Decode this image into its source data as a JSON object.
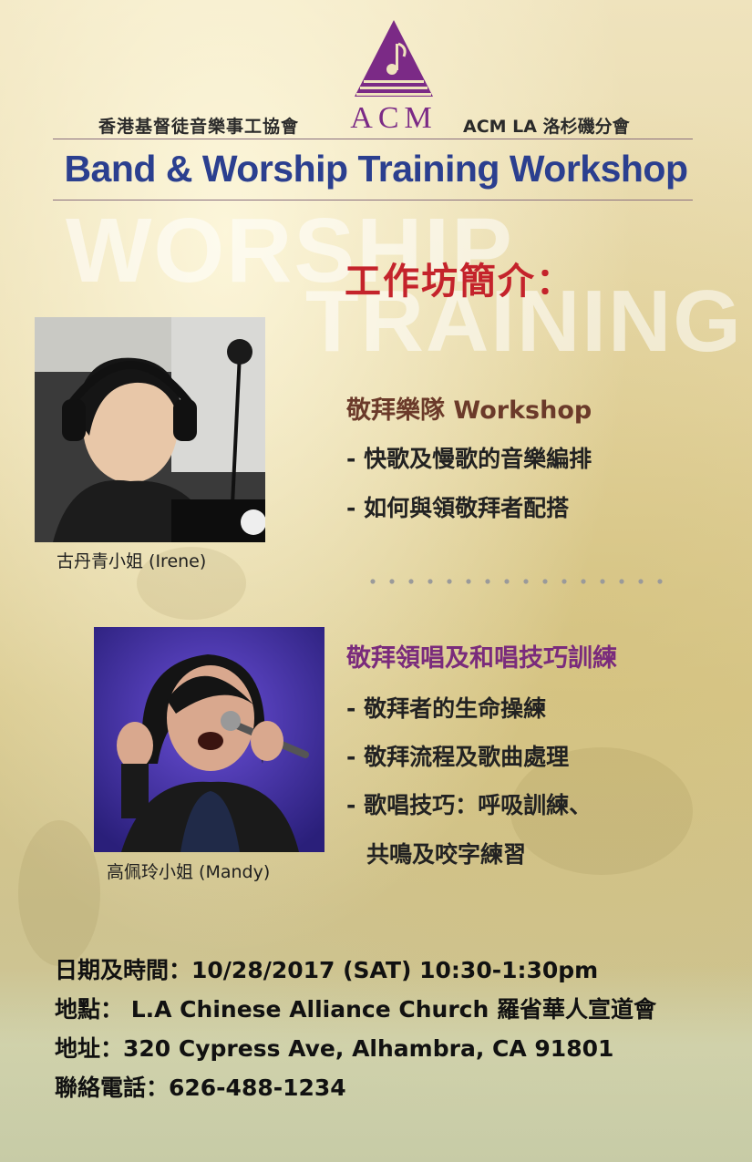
{
  "header": {
    "org_left": "香港基督徒音樂事工協會",
    "logo_text": "ACM",
    "org_right": "ACM LA 洛杉磯分會",
    "title": "Band & Worship Training Workshop"
  },
  "background_words": [
    "WORSHIP",
    "TRAINING"
  ],
  "intro_heading": "工作坊簡介：",
  "speakers": [
    {
      "caption": "古丹青小姐 (Irene)"
    },
    {
      "caption": "高佩玲小姐 (Mandy)"
    }
  ],
  "sections": [
    {
      "title": "敬拜樂隊 Workshop",
      "color": "#6b3a2a",
      "bullets": [
        "- 快歌及慢歌的音樂編排",
        "- 如何與領敬拜者配搭"
      ]
    },
    {
      "title": "敬拜領唱及和唱技巧訓練",
      "color": "#7a2b7c",
      "bullets": [
        "- 敬拜者的生命操練",
        "- 敬拜流程及歌曲處理",
        "- 歌唱技巧：呼吸訓練、",
        "共鳴及咬字練習"
      ]
    }
  ],
  "details": [
    "日期及時間：10/28/2017 (SAT) 10:30-1:30pm",
    "地點： L.A Chinese Alliance Church 羅省華人宣道會",
    "地址：320 Cypress Ave, Alhambra, CA 91801",
    "聯絡電話：626-488-1234"
  ],
  "colors": {
    "title_blue": "#2b3f8f",
    "intro_red": "#c4232b",
    "logo_purple": "#7b2a86"
  }
}
